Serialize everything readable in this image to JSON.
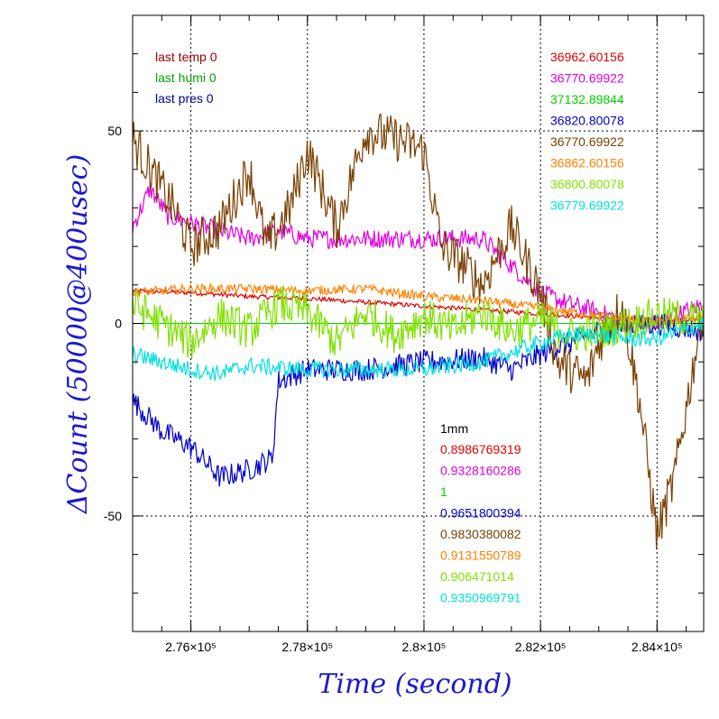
{
  "chart_data": {
    "type": "line",
    "title": "",
    "xlabel": "Time (second)",
    "ylabel": "ΔCount (50000@400usec)",
    "xlim": [
      275000,
      284800
    ],
    "ylim": [
      -80,
      80
    ],
    "grid": true,
    "x_ticks": [
      {
        "value": 276000,
        "label": "2.76×10⁵"
      },
      {
        "value": 278000,
        "label": "2.78×10⁵"
      },
      {
        "value": 280000,
        "label": "2.8×10⁵"
      },
      {
        "value": 282000,
        "label": "2.82×10⁵"
      },
      {
        "value": 284000,
        "label": "2.84×10⁵"
      }
    ],
    "y_ticks": [
      {
        "value": 50,
        "label": "50"
      },
      {
        "value": 0,
        "label": "0"
      },
      {
        "value": -50,
        "label": "-50"
      }
    ],
    "env_legend": [
      {
        "text": "last temp 0",
        "color": "#a00000"
      },
      {
        "text": "last humi 0",
        "color": "#00a000"
      },
      {
        "text": "last pres 0",
        "color": "#00008b"
      }
    ],
    "values_legend": [
      {
        "text": "36962.60156",
        "color": "#e00000"
      },
      {
        "text": "36770.69922",
        "color": "#e000e0"
      },
      {
        "text": "37132.89844",
        "color": "#00d000"
      },
      {
        "text": "36820.80078",
        "color": "#0000c8"
      },
      {
        "text": "36770.69922",
        "color": "#7a4000"
      },
      {
        "text": "36862.60156",
        "color": "#ff8000"
      },
      {
        "text": "36800.80078",
        "color": "#80e000"
      },
      {
        "text": "36779.69922",
        "color": "#00e0e0"
      }
    ],
    "ratio_legend_title": "1mm",
    "ratio_legend": [
      {
        "text": "0.8986769319",
        "color": "#e00000"
      },
      {
        "text": "0.9328160286",
        "color": "#e000e0"
      },
      {
        "text": "1",
        "color": "#00d000"
      },
      {
        "text": "0.9651800394",
        "color": "#0000c8"
      },
      {
        "text": "0.9830380082",
        "color": "#7a4000"
      },
      {
        "text": "0.9131550789",
        "color": "#ff8000"
      },
      {
        "text": "0.906471014",
        "color": "#80e000"
      },
      {
        "text": "0.9350969791",
        "color": "#00e0e0"
      }
    ],
    "series": [
      {
        "color": "#e00000",
        "noise": 0.6,
        "x": [
          275000,
          276000,
          277000,
          278000,
          279000,
          280000,
          281000,
          282000,
          283000,
          284000,
          284800
        ],
        "y": [
          8.5,
          8,
          7,
          6.5,
          5.5,
          4.5,
          3.5,
          2.5,
          1.5,
          1,
          1
        ]
      },
      {
        "color": "#e000e0",
        "noise": 2.5,
        "x": [
          275000,
          275300,
          275600,
          276000,
          276500,
          277000,
          277500,
          278000,
          279000,
          280000,
          281000,
          282000,
          282500,
          283000,
          283500,
          284000,
          284800
        ],
        "y": [
          25,
          35,
          28,
          26,
          24,
          22,
          24,
          22,
          22,
          22,
          22,
          8,
          5,
          3,
          0,
          0,
          5
        ]
      },
      {
        "color": "#00d000",
        "noise": 0,
        "x": [
          275000,
          284800
        ],
        "y": [
          0,
          0
        ]
      },
      {
        "color": "#0000c8",
        "noise": 3,
        "x": [
          275000,
          275500,
          276000,
          276500,
          277000,
          277400,
          277500,
          278000,
          279000,
          280000,
          281000,
          281500,
          282000,
          282500,
          283000,
          284000,
          284800
        ],
        "y": [
          -20,
          -28,
          -32,
          -40,
          -38,
          -35,
          -15,
          -12,
          -12,
          -10,
          -9,
          -12,
          -8,
          -5,
          -2,
          0,
          -2
        ]
      },
      {
        "color": "#7a4000",
        "noise": 6,
        "x": [
          275000,
          275300,
          275700,
          276000,
          276500,
          277000,
          277300,
          277700,
          278000,
          278500,
          279000,
          279500,
          280000,
          280300,
          280700,
          281000,
          281500,
          282000,
          282300,
          282800,
          283000,
          283400,
          283700,
          284000,
          284300,
          284800
        ],
        "y": [
          48,
          40,
          30,
          20,
          25,
          40,
          20,
          30,
          45,
          25,
          50,
          48,
          45,
          20,
          15,
          10,
          25,
          8,
          -10,
          -15,
          -5,
          5,
          -20,
          -55,
          -40,
          5
        ]
      },
      {
        "color": "#ff8000",
        "noise": 1.2,
        "x": [
          275000,
          276000,
          277000,
          278000,
          279000,
          280000,
          281000,
          282000,
          283000,
          284000,
          284800
        ],
        "y": [
          8,
          9,
          9,
          8.5,
          9,
          7,
          6,
          4,
          2,
          0,
          2
        ]
      },
      {
        "color": "#80e000",
        "noise": 5,
        "x": [
          275000,
          275500,
          276000,
          276500,
          277000,
          277500,
          278000,
          278500,
          279000,
          279500,
          280000,
          280500,
          281000,
          281500,
          282000,
          282500,
          283000,
          283500,
          284000,
          284800
        ],
        "y": [
          5,
          0,
          -5,
          2,
          -2,
          5,
          3,
          -5,
          3,
          -3,
          2,
          -2,
          3,
          -2,
          1,
          -3,
          -2,
          0,
          2,
          1
        ]
      },
      {
        "color": "#00e0e0",
        "noise": 2.2,
        "x": [
          275000,
          275500,
          276000,
          276500,
          277000,
          278000,
          279000,
          280000,
          281000,
          282000,
          282500,
          283000,
          283500,
          284000,
          284800
        ],
        "y": [
          -8,
          -10,
          -12,
          -13,
          -11,
          -12,
          -12,
          -12,
          -10,
          -5,
          -3,
          -3,
          -4,
          -4,
          0
        ]
      }
    ]
  }
}
